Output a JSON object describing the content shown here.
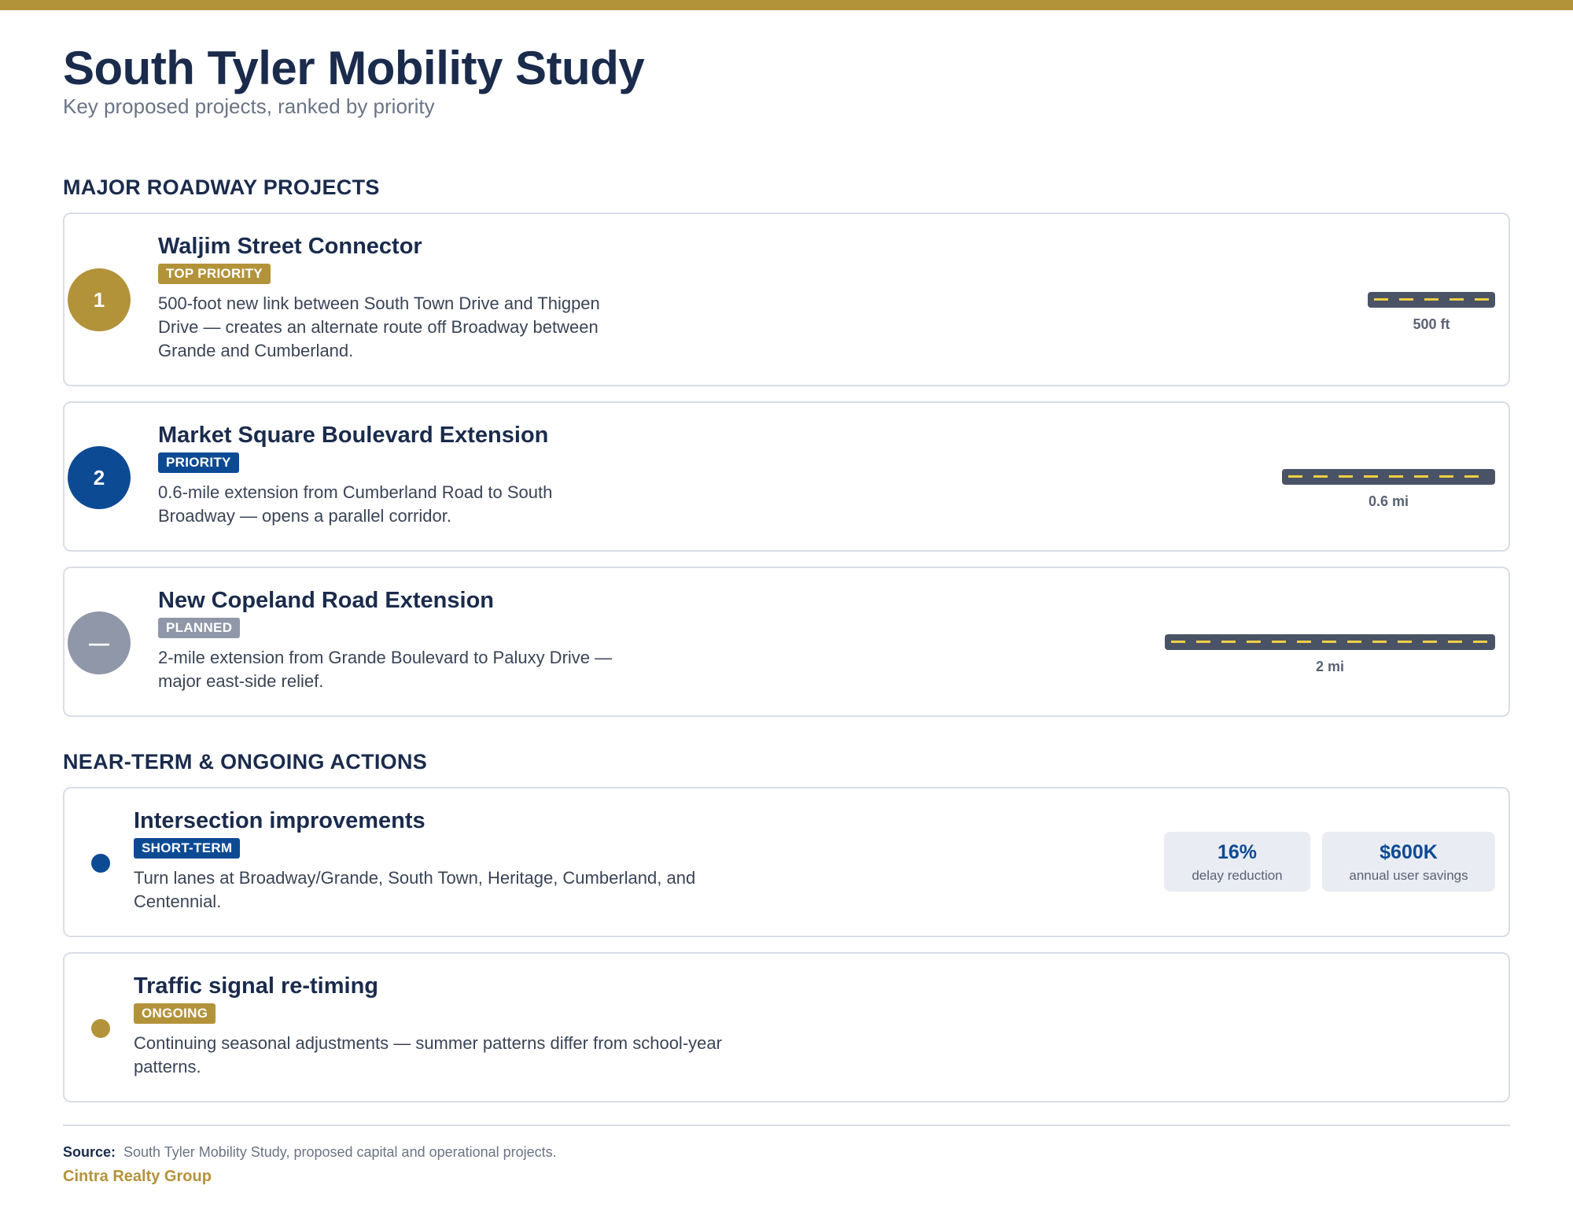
{
  "header": {
    "title": "South Tyler Mobility Study",
    "subtitle": "Key proposed projects, ranked by priority"
  },
  "sections": {
    "roadway": "MAJOR ROADWAY PROJECTS",
    "actions": "NEAR-TERM & ONGOING ACTIONS"
  },
  "colors": {
    "gold": "#b3933a",
    "navy": "#1a2b4c",
    "blue": "#0d4a94",
    "gray": "#8f97a8",
    "road": "#4a5366",
    "lane": "#f2cf43"
  },
  "projects": [
    {
      "badge": "1",
      "title": "Waljim Street Connector",
      "tag": "TOP PRIORITY",
      "description": "500-foot new link between South Town Drive and Thigpen Drive — creates an alternate route off Broadway between Grande and Cumberland.",
      "length_label": "500 ft"
    },
    {
      "badge": "2",
      "title": "Market Square Boulevard Extension",
      "tag": "PRIORITY",
      "description": "0.6-mile extension from Cumberland Road to South Broadway — opens a parallel corridor.",
      "length_label": "0.6 mi"
    },
    {
      "badge": "—",
      "title": "New Copeland Road Extension",
      "tag": "PLANNED",
      "description": "2-mile extension from Grande Boulevard to Paluxy Drive — major east-side relief.",
      "length_label": "2 mi"
    }
  ],
  "actions": [
    {
      "title": "Intersection improvements",
      "tag": "SHORT-TERM",
      "description": "Turn lanes at Broadway/Grande, South Town, Heritage, Cumberland, and Centennial.",
      "stats": [
        {
          "value": "16%",
          "label": "delay reduction"
        },
        {
          "value": "$600K",
          "label": "annual user savings"
        }
      ]
    },
    {
      "title": "Traffic signal re-timing",
      "tag": "ONGOING",
      "description": "Continuing seasonal adjustments — summer patterns differ from school-year patterns."
    }
  ],
  "footer": {
    "source_label": "Source:",
    "source_text": "South Tyler Mobility Study, proposed capital and operational projects.",
    "brand": "Cintra Realty Group"
  }
}
